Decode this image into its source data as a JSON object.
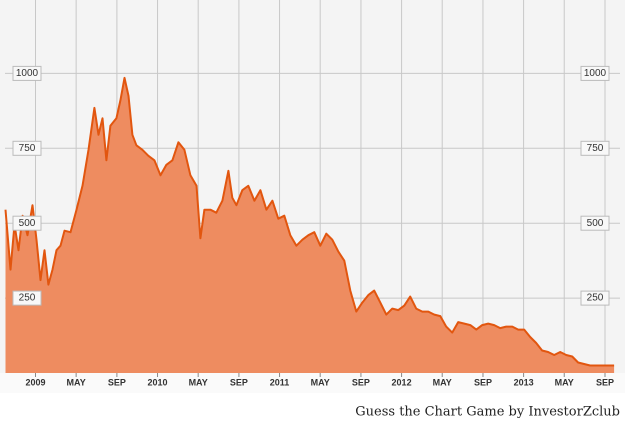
{
  "chart_data": {
    "type": "area",
    "caption": "Guess the Chart Game by InvestorZclub",
    "x": [
      2008.754,
      2008.795,
      2008.828,
      2008.861,
      2008.894,
      2008.934,
      2008.975,
      2009.008,
      2009.041,
      2009.074,
      2009.106,
      2009.139,
      2009.172,
      2009.205,
      2009.238,
      2009.287,
      2009.336,
      2009.385,
      2009.434,
      2009.483,
      2009.516,
      2009.549,
      2009.581,
      2009.614,
      2009.663,
      2009.696,
      2009.729,
      2009.762,
      2009.794,
      2009.827,
      2009.876,
      2009.925,
      2009.974,
      2010.024,
      2010.073,
      2010.122,
      2010.171,
      2010.22,
      2010.269,
      2010.319,
      2010.351,
      2010.384,
      2010.433,
      2010.482,
      2010.532,
      2010.581,
      2010.613,
      2010.646,
      2010.695,
      2010.744,
      2010.794,
      2010.843,
      2010.892,
      2010.941,
      2010.99,
      2011.039,
      2011.088,
      2011.138,
      2011.187,
      2011.236,
      2011.285,
      2011.334,
      2011.383,
      2011.432,
      2011.482,
      2011.531,
      2011.58,
      2011.629,
      2011.678,
      2011.727,
      2011.776,
      2011.826,
      2011.875,
      2011.924,
      2011.973,
      2012.022,
      2012.071,
      2012.12,
      2012.17,
      2012.219,
      2012.268,
      2012.317,
      2012.366,
      2012.415,
      2012.464,
      2012.514,
      2012.563,
      2012.612,
      2012.661,
      2012.71,
      2012.759,
      2012.808,
      2012.857,
      2012.907,
      2012.956,
      2013.005,
      2013.054,
      2013.103,
      2013.152,
      2013.201,
      2013.251,
      2013.3,
      2013.349,
      2013.398,
      2013.447,
      2013.496,
      2013.545,
      2013.595,
      2013.644,
      2013.693,
      2013.742
    ],
    "series": [
      {
        "color": "#e2560f",
        "fill": "#ee8c60",
        "values": [
          545,
          345,
          495,
          410,
          525,
          460,
          560,
          445,
          310,
          410,
          295,
          345,
          410,
          425,
          475,
          470,
          545,
          625,
          745,
          885,
          795,
          850,
          710,
          825,
          850,
          910,
          985,
          925,
          795,
          760,
          745,
          725,
          710,
          660,
          695,
          710,
          770,
          745,
          660,
          625,
          450,
          545,
          545,
          535,
          575,
          675,
          585,
          560,
          610,
          625,
          575,
          610,
          545,
          575,
          515,
          525,
          460,
          425,
          445,
          460,
          470,
          425,
          465,
          445,
          405,
          375,
          275,
          205,
          235,
          260,
          275,
          235,
          195,
          215,
          210,
          225,
          255,
          215,
          205,
          205,
          195,
          190,
          155,
          135,
          170,
          165,
          160,
          145,
          160,
          165,
          160,
          150,
          155,
          155,
          145,
          145,
          120,
          100,
          75,
          70,
          60,
          70,
          60,
          55,
          35,
          30,
          25,
          25,
          25,
          25,
          25
        ]
      }
    ],
    "xlim": [
      2008.75,
      2013.79
    ],
    "xticks": [
      2009,
      {
        "value": 2009.333,
        "label": "MAY"
      },
      {
        "value": 2009.667,
        "label": "SEP"
      },
      2010,
      {
        "value": 2010.333,
        "label": "MAY"
      },
      {
        "value": 2010.667,
        "label": "SEP"
      },
      2011,
      {
        "value": 2011.333,
        "label": "MAY"
      },
      {
        "value": 2011.667,
        "label": "SEP"
      },
      2012,
      {
        "value": 2012.333,
        "label": "MAY"
      },
      {
        "value": 2012.667,
        "label": "SEP"
      },
      2013,
      {
        "value": 2013.333,
        "label": "MAY"
      },
      {
        "value": 2013.667,
        "label": "SEP"
      }
    ],
    "ylim": [
      0,
      1245
    ],
    "yticks": [
      250,
      500,
      750,
      1000
    ],
    "grid": true
  }
}
